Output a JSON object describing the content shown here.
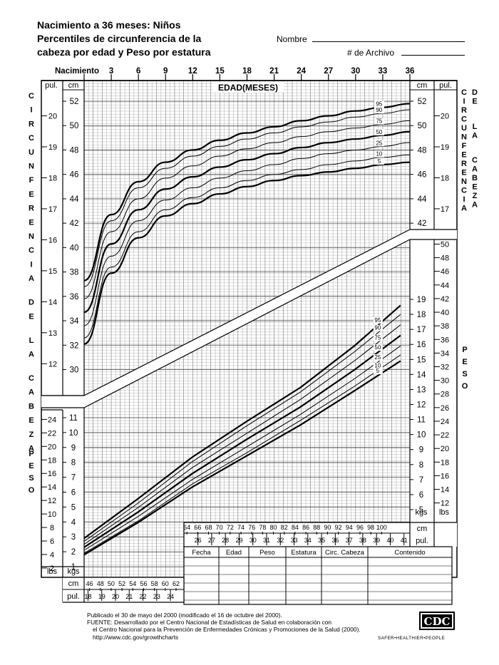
{
  "header": {
    "title_line1": "Nacimiento a 36 meses: Niños",
    "title_line2": "Percentiles de circunferencia de la",
    "title_line3": "cabeza por edad y Peso por estatura",
    "name_label": "Nombre",
    "record_label": "# de Archivo"
  },
  "chart_data": {
    "type": "line",
    "age_axis": {
      "label": "EDAD(MESES)",
      "tick_first_label": "Nacimiento",
      "ticks": [
        0,
        3,
        6,
        9,
        12,
        15,
        18,
        21,
        24,
        27,
        30,
        33,
        36
      ],
      "tick_labels": [
        "Nacimiento",
        "3",
        "6",
        "9",
        "12",
        "15",
        "18",
        "21",
        "24",
        "27",
        "30",
        "33",
        "36"
      ],
      "range": [
        0,
        36
      ]
    },
    "head_circumference": {
      "left_vertical_label": "CIRCUNFERENCIA DE LA CABEZA",
      "right_vertical_label": "CIRCUNFERENCIA DE LA CABEZA",
      "cm_unit": "cm",
      "in_unit": "pul.",
      "cm_ticks": [
        30,
        32,
        34,
        36,
        38,
        40,
        42,
        44,
        46,
        48,
        50,
        52
      ],
      "cm_right_ticks": [
        42,
        44,
        46,
        48,
        50,
        52
      ],
      "in_ticks": [
        12,
        13,
        14,
        15,
        16,
        17,
        18,
        19,
        20
      ],
      "in_right_ticks": [
        17,
        18,
        19,
        20
      ],
      "x_months": [
        0,
        3,
        6,
        9,
        12,
        15,
        18,
        21,
        24,
        27,
        30,
        33,
        36
      ],
      "series": [
        {
          "name": "95",
          "values": [
            37.3,
            42.7,
            45.4,
            47.0,
            48.0,
            48.8,
            49.4,
            49.9,
            50.4,
            50.8,
            51.2,
            51.5,
            51.8
          ]
        },
        {
          "name": "90",
          "values": [
            36.8,
            42.2,
            44.9,
            46.5,
            47.5,
            48.3,
            48.9,
            49.4,
            49.9,
            50.3,
            50.7,
            51.0,
            51.3
          ]
        },
        {
          "name": "75",
          "values": [
            35.8,
            41.3,
            44.0,
            45.7,
            46.7,
            47.5,
            48.1,
            48.6,
            49.1,
            49.5,
            49.8,
            50.1,
            50.4
          ]
        },
        {
          "name": "50",
          "values": [
            34.7,
            40.3,
            43.1,
            44.8,
            45.8,
            46.6,
            47.2,
            47.7,
            48.2,
            48.6,
            48.9,
            49.2,
            49.5
          ]
        },
        {
          "name": "25",
          "values": [
            33.6,
            39.3,
            42.2,
            43.9,
            44.9,
            45.7,
            46.3,
            46.8,
            47.3,
            47.7,
            48.0,
            48.3,
            48.6
          ]
        },
        {
          "name": "10",
          "values": [
            32.6,
            38.4,
            41.3,
            43.1,
            44.1,
            44.9,
            45.5,
            46.0,
            46.4,
            46.8,
            47.1,
            47.4,
            47.6
          ]
        },
        {
          "name": "5",
          "values": [
            32.1,
            37.9,
            40.8,
            42.6,
            43.6,
            44.4,
            45.0,
            45.5,
            45.9,
            46.2,
            46.5,
            46.8,
            47.0
          ]
        }
      ]
    },
    "weight_for_length": {
      "vertical_label": "PESO",
      "kg_unit": "kgs",
      "lb_unit": "lbs",
      "cm_unit": "cm",
      "in_unit": "pul.",
      "kg_left_ticks": [
        1,
        2,
        3,
        4,
        5,
        6,
        7,
        8,
        9,
        10,
        11
      ],
      "lb_left_ticks": [
        2,
        4,
        6,
        8,
        10,
        12,
        14,
        16,
        18,
        20,
        22,
        24
      ],
      "kg_right_ticks": [
        5,
        6,
        7,
        8,
        9,
        10,
        11,
        12,
        13,
        14,
        15,
        16,
        17,
        18,
        19
      ],
      "lb_right_ticks": [
        12,
        14,
        16,
        18,
        20,
        22,
        24,
        26,
        28,
        30,
        32,
        34,
        36,
        38,
        40,
        42,
        44,
        46,
        48,
        50
      ],
      "length_cm_upper_ticks": [
        64,
        66,
        68,
        70,
        72,
        74,
        76,
        78,
        80,
        82,
        84,
        86,
        88,
        90,
        92,
        94,
        96,
        98,
        100
      ],
      "length_in_upper_ticks": [
        26,
        27,
        28,
        29,
        30,
        31,
        32,
        33,
        34,
        35,
        36,
        37,
        38,
        39,
        40,
        41
      ],
      "length_cm_lower_ticks": [
        46,
        48,
        50,
        52,
        54,
        56,
        58,
        60,
        62
      ],
      "length_in_lower_ticks": [
        18,
        19,
        20,
        21,
        22,
        23,
        24
      ],
      "x_cm": [
        45,
        55,
        65,
        75,
        85,
        95,
        103.5
      ],
      "series": [
        {
          "name": "95",
          "values": [
            2.9,
            5.6,
            8.4,
            10.8,
            13.1,
            15.9,
            18.6
          ]
        },
        {
          "name": "90",
          "values": [
            2.7,
            5.3,
            8.1,
            10.5,
            12.8,
            15.5,
            18.0
          ]
        },
        {
          "name": "75",
          "values": [
            2.5,
            5.0,
            7.7,
            10.0,
            12.3,
            14.9,
            17.3
          ]
        },
        {
          "name": "50",
          "values": [
            2.3,
            4.7,
            7.3,
            9.6,
            11.8,
            14.3,
            16.6
          ]
        },
        {
          "name": "25",
          "values": [
            2.1,
            4.4,
            6.9,
            9.1,
            11.3,
            13.7,
            15.9
          ]
        },
        {
          "name": "10",
          "values": [
            1.9,
            4.1,
            6.6,
            8.7,
            10.9,
            13.2,
            15.3
          ]
        },
        {
          "name": "5",
          "values": [
            1.8,
            4.0,
            6.4,
            8.5,
            10.6,
            12.9,
            14.9
          ]
        }
      ]
    }
  },
  "record_table": {
    "headers": [
      "Fecha",
      "Edad",
      "Peso",
      "Estatura",
      "Circ. Cabeza",
      "Contenido"
    ]
  },
  "footer": {
    "line1": "Publicado el 30 de mayo del 2000 (modificado el 16 de octubre del 2000).",
    "line2": "FUENTE: Desarrollado por el Centro Nacional de Estadísticas de Salud en colaboración con",
    "line3": "el Centro Nacional para la Prevención de Enfermedades Crónicas y Promociones de la Salud (2000).",
    "line4": "http://www.cdc.gov/growthcharts",
    "logo_text": "CDC",
    "tagline": "SAFER•HEALTHIER•PEOPLE"
  }
}
